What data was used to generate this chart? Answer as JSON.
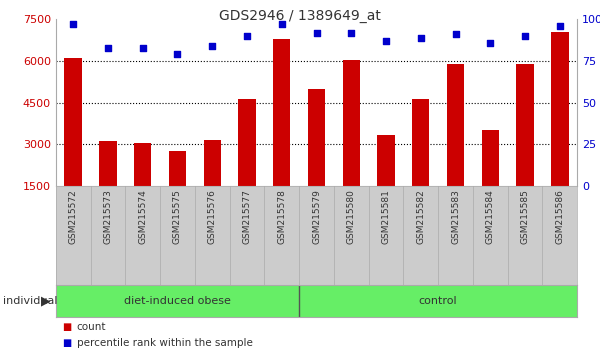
{
  "title": "GDS2946 / 1389649_at",
  "categories": [
    "GSM215572",
    "GSM215573",
    "GSM215574",
    "GSM215575",
    "GSM215576",
    "GSM215577",
    "GSM215578",
    "GSM215579",
    "GSM215580",
    "GSM215581",
    "GSM215582",
    "GSM215583",
    "GSM215584",
    "GSM215585",
    "GSM215586"
  ],
  "bar_values": [
    6100,
    3100,
    3050,
    2750,
    3150,
    4650,
    6800,
    5000,
    6050,
    3350,
    4650,
    5900,
    3500,
    5900,
    7050
  ],
  "percentile_values": [
    97,
    83,
    83,
    79,
    84,
    90,
    97,
    92,
    92,
    87,
    89,
    91,
    86,
    90,
    96
  ],
  "bar_color": "#cc0000",
  "dot_color": "#0000cc",
  "ylim_left": [
    1500,
    7500
  ],
  "ylim_right": [
    0,
    100
  ],
  "yticks_left": [
    1500,
    3000,
    4500,
    6000,
    7500
  ],
  "yticks_right": [
    0,
    25,
    50,
    75,
    100
  ],
  "grid_yticks": [
    3000,
    4500,
    6000
  ],
  "bg_color": "#ffffff",
  "group1_label": "diet-induced obese",
  "group2_label": "control",
  "group1_count": 7,
  "group2_count": 8,
  "group_bg": "#66ee66",
  "tick_bg": "#cccccc",
  "legend_count_label": "count",
  "legend_pct_label": "percentile rank within the sample",
  "individual_label": "individual",
  "bar_axis_color": "#cc0000",
  "right_axis_color": "#0000cc",
  "spine_color": "#aaaaaa",
  "title_fontsize": 10,
  "bar_width": 0.5,
  "dot_size": 18
}
